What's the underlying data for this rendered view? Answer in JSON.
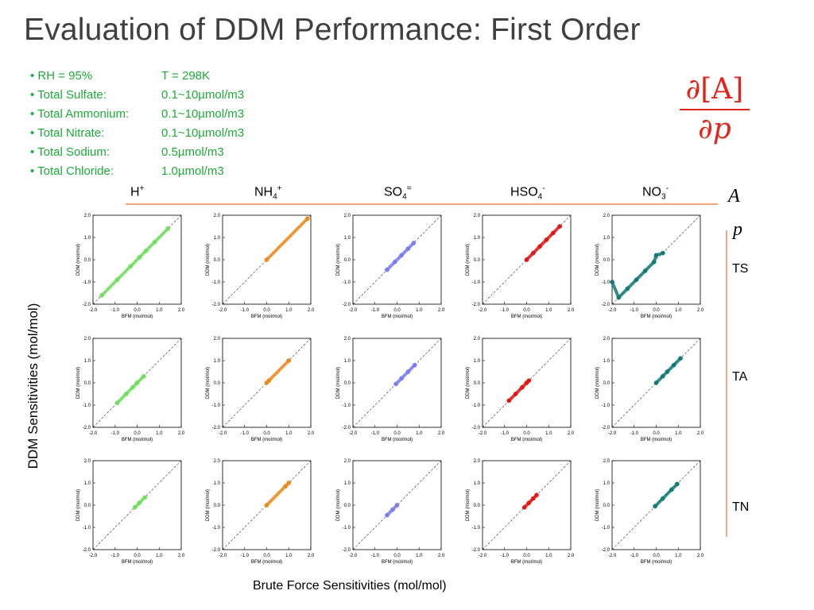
{
  "title": "Evaluation of DDM Performance: First Order",
  "conditions": [
    {
      "name": "• RH = 95%",
      "value": "T = 298K"
    },
    {
      "name": "• Total Sulfate:",
      "value": "0.1~10µmol/m3"
    },
    {
      "name": "• Total Ammonium:",
      "value": "0.1~10µmol/m3"
    },
    {
      "name": "• Total Nitrate:",
      "value": "0.1~10µmol/m3"
    },
    {
      "name": "• Total Sodium:",
      "value": "0.5µmol/m3"
    },
    {
      "name": "• Total Chloride:",
      "value": "1.0µmol/m3"
    }
  ],
  "formula": {
    "numerator": "∂[A]",
    "denominator": "∂p"
  },
  "species": [
    {
      "base": "H",
      "sub": "",
      "sup": "+"
    },
    {
      "base": "NH",
      "sub": "4",
      "sup": "+"
    },
    {
      "base": "SO",
      "sub": "4",
      "sup": "="
    },
    {
      "base": "HSO",
      "sub": "4",
      "sup": "-"
    },
    {
      "base": "NO",
      "sub": "3",
      "sup": "-"
    }
  ],
  "axis_symbol_a": "A",
  "axis_symbol_p": "p",
  "rows": [
    "TS",
    "TA",
    "TN"
  ],
  "y_label": "DDM Sensitivities (mol/mol)",
  "x_label": "Brute Force Sensitivities (mol/mol)",
  "panel_x_label": "BFM (mol/mol)",
  "panel_y_label": "DDM (mol/mol)",
  "colors": {
    "H": "#6ee05e",
    "NH4": "#f08a1c",
    "SO4": "#7a7ef0",
    "HSO4": "#e21818",
    "NO3": "#127a78",
    "accent": "#f3a67a",
    "formula": "#e2241b",
    "params": "#1faa3a"
  },
  "chart_data": {
    "type": "scatter",
    "layout": "grid 3 rows x 5 columns",
    "xlim": [
      -2.0,
      2.0
    ],
    "ylim": [
      -2.0,
      2.0
    ],
    "ticks": [
      "-2.0",
      "-1.0",
      "0.0",
      "1.0",
      "2.0"
    ],
    "reference_line": "y = x (dashed)",
    "rows": [
      "TS",
      "TA",
      "TN"
    ],
    "columns": [
      "H+",
      "NH4+",
      "SO4=",
      "HSO4-",
      "NO3-"
    ],
    "panels": [
      [
        {
          "x": [
            -1.6,
            -0.9,
            -0.3,
            0.1,
            0.4,
            0.8,
            1.4
          ],
          "y": [
            -1.6,
            -0.9,
            -0.3,
            0.1,
            0.4,
            0.8,
            1.4
          ]
        },
        {
          "x": [
            0.0,
            1.85
          ],
          "y": [
            0.0,
            1.85
          ]
        },
        {
          "x": [
            -0.45,
            -0.1,
            0.2,
            0.5,
            0.75
          ],
          "y": [
            -0.45,
            -0.1,
            0.2,
            0.5,
            0.75
          ]
        },
        {
          "x": [
            0.0,
            0.3,
            0.6,
            0.9,
            1.2,
            1.5
          ],
          "y": [
            0.0,
            0.3,
            0.6,
            0.9,
            1.2,
            1.5
          ]
        },
        {
          "x": [
            -2.0,
            -1.7,
            -1.3,
            -0.9,
            -0.5,
            -0.1,
            0.0,
            0.3
          ],
          "y": [
            -1.0,
            -1.7,
            -1.3,
            -0.9,
            -0.5,
            -0.1,
            0.2,
            0.3
          ]
        }
      ],
      [
        {
          "x": [
            -0.9,
            -0.5,
            -0.2,
            0.0,
            0.3
          ],
          "y": [
            -0.9,
            -0.5,
            -0.2,
            0.0,
            0.3
          ]
        },
        {
          "x": [
            0.0,
            0.1,
            1.0
          ],
          "y": [
            0.0,
            0.1,
            1.0
          ]
        },
        {
          "x": [
            -0.05,
            0.2,
            0.5,
            0.8
          ],
          "y": [
            -0.05,
            0.2,
            0.5,
            0.8
          ]
        },
        {
          "x": [
            -0.8,
            -0.5,
            -0.2,
            0.0,
            0.1
          ],
          "y": [
            -0.8,
            -0.5,
            -0.2,
            0.0,
            0.1
          ]
        },
        {
          "x": [
            0.0,
            0.3,
            0.5,
            0.8,
            1.1
          ],
          "y": [
            0.0,
            0.3,
            0.5,
            0.8,
            1.1
          ]
        }
      ],
      [
        {
          "x": [
            -0.1,
            0.1,
            0.35
          ],
          "y": [
            -0.1,
            0.1,
            0.35
          ]
        },
        {
          "x": [
            0.0,
            0.85,
            1.0
          ],
          "y": [
            0.0,
            0.85,
            1.0
          ]
        },
        {
          "x": [
            -0.45,
            -0.2,
            0.0
          ],
          "y": [
            -0.45,
            -0.2,
            0.0
          ]
        },
        {
          "x": [
            -0.1,
            0.1,
            0.3,
            0.45
          ],
          "y": [
            -0.1,
            0.1,
            0.3,
            0.45
          ]
        },
        {
          "x": [
            -0.05,
            0.3,
            0.7,
            0.95
          ],
          "y": [
            -0.05,
            0.3,
            0.7,
            0.95
          ]
        }
      ]
    ]
  }
}
